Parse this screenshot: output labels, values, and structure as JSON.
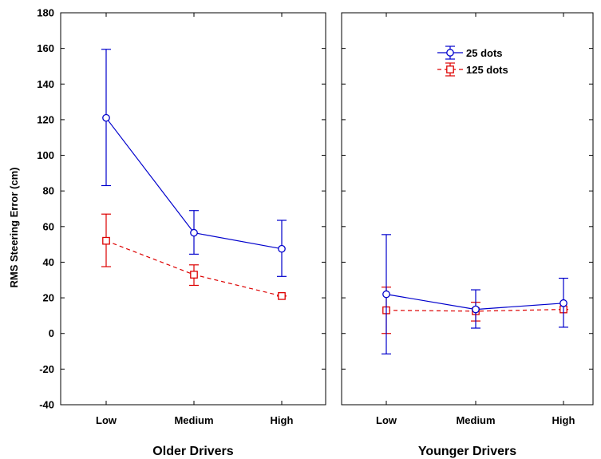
{
  "chart_data": {
    "type": "line",
    "ylabel": "RMS Steering Error (cm)",
    "ylim": [
      -40,
      180
    ],
    "yticks": [
      -40,
      -20,
      0,
      20,
      40,
      60,
      80,
      100,
      120,
      140,
      160,
      180
    ],
    "categories": [
      "Low",
      "Medium",
      "High"
    ],
    "grid": false,
    "legend_position": "top-right of right panel",
    "colors": {
      "series1": "#0000cc",
      "series2": "#dd0000"
    },
    "legend": [
      {
        "name": "25 dots",
        "color": "#0000cc",
        "marker": "circle",
        "dash": "solid"
      },
      {
        "name": "125 dots",
        "color": "#dd0000",
        "marker": "square",
        "dash": "dashed"
      }
    ],
    "panels": [
      {
        "title": "Older Drivers",
        "series": [
          {
            "name": "25 dots",
            "values": [
              121,
              56.5,
              47.5
            ],
            "lower": [
              83,
              44.5,
              32
            ],
            "upper": [
              159.5,
              69,
              63.5
            ]
          },
          {
            "name": "125 dots",
            "values": [
              52,
              33,
              21
            ],
            "lower": [
              37.5,
              27,
              21
            ],
            "upper": [
              67,
              38.5,
              21
            ]
          }
        ]
      },
      {
        "title": "Younger Drivers",
        "series": [
          {
            "name": "25 dots",
            "values": [
              22,
              13.5,
              17
            ],
            "lower": [
              -11.5,
              3,
              3.5
            ],
            "upper": [
              55.5,
              24.5,
              31
            ]
          },
          {
            "name": "125 dots",
            "values": [
              13,
              12.5,
              13.5
            ],
            "lower": [
              0,
              7,
              13.5
            ],
            "upper": [
              26,
              17.5,
              13.5
            ]
          }
        ]
      }
    ]
  }
}
